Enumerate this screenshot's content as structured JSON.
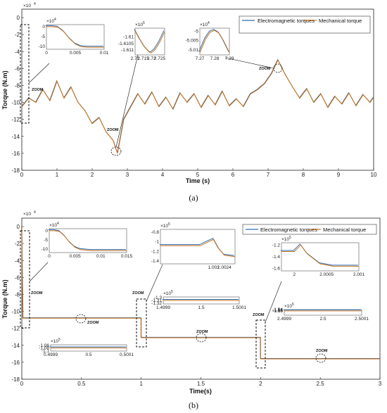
{
  "chart_data": [
    {
      "type": "line",
      "panel_caption": "(a)",
      "xlabel": "Time (s)",
      "ylabel": "Torque (N.m)",
      "y_multiplier": "×10^4",
      "y_multiplier_text": "×10",
      "y_multiplier_exp": "4",
      "xlim": [
        0,
        10
      ],
      "ylim": [
        -18,
        1
      ],
      "xticks": [
        "0",
        "1",
        "2",
        "3",
        "4",
        "5",
        "6",
        "7",
        "8",
        "9",
        "10"
      ],
      "yticks": [
        "0",
        "-2",
        "-4",
        "-6",
        "-8",
        "-10",
        "-12",
        "-14",
        "-16",
        "-18"
      ],
      "legend": [
        "Electromagnetic torques",
        "Mechanical torque"
      ],
      "series_colors": [
        "#2E6EB5",
        "#C4701A"
      ],
      "zoom_label": "ZOOM",
      "series": [
        {
          "name": "Mechanical torque",
          "x": [
            0,
            0.2,
            0.4,
            0.6,
            0.8,
            1.0,
            1.2,
            1.4,
            1.6,
            1.8,
            2.0,
            2.2,
            2.4,
            2.6,
            2.72,
            2.9,
            3.1,
            3.3,
            3.5,
            3.7,
            3.9,
            4.1,
            4.3,
            4.5,
            4.7,
            4.9,
            5.1,
            5.3,
            5.5,
            5.7,
            5.9,
            6.1,
            6.3,
            6.5,
            6.7,
            6.9,
            7.1,
            7.28,
            7.5,
            7.7,
            7.9,
            8.1,
            8.3,
            8.5,
            8.7,
            8.9,
            9.1,
            9.3,
            9.5,
            9.7,
            9.9,
            10
          ],
          "y": [
            -10.5,
            -9.5,
            -10.0,
            -8.5,
            -9.8,
            -7.5,
            -9.5,
            -8.2,
            -10.0,
            -11.0,
            -12.5,
            -11.8,
            -13.5,
            -14.5,
            -16.0,
            -12.0,
            -10.5,
            -9.0,
            -10.2,
            -8.8,
            -10.5,
            -9.4,
            -10.8,
            -8.9,
            -10.0,
            -9.0,
            -10.6,
            -9.2,
            -10.3,
            -8.7,
            -10.4,
            -9.6,
            -10.5,
            -9.0,
            -8.5,
            -7.8,
            -6.6,
            -5.0,
            -6.8,
            -8.2,
            -9.5,
            -8.4,
            -10.0,
            -9.0,
            -10.6,
            -9.3,
            -10.2,
            -8.9,
            -10.4,
            -9.1,
            -10.0,
            -9.4
          ]
        }
      ],
      "insets": [
        {
          "multiplier_exp": "4",
          "xticks": [
            "0",
            "0.005",
            "0.01"
          ],
          "yticks": [
            "0",
            "-5",
            "-10"
          ],
          "x": [
            0,
            0.001,
            0.002,
            0.003,
            0.004,
            0.005,
            0.006,
            0.007,
            0.008,
            0.01
          ],
          "y": [
            0,
            0,
            -0.3,
            -2.5,
            -6.0,
            -8.8,
            -10.1,
            -10.4,
            -10.4,
            -10.4
          ]
        },
        {
          "multiplier_exp": "5",
          "xticks": [
            "2.71",
            "2.715",
            "2.72",
            "2.725"
          ],
          "yticks": [
            "-1.61",
            "-1.6105",
            "-1.611"
          ],
          "x": [
            2.71,
            2.713,
            2.716,
            2.719,
            2.72,
            2.722,
            2.725,
            2.728
          ],
          "y": [
            -1.6095,
            -1.6102,
            -1.6108,
            -1.6112,
            -1.6112,
            -1.611,
            -1.6104,
            -1.6096
          ]
        },
        {
          "multiplier_exp": "4",
          "xticks": [
            "7.27",
            "7.28",
            "7.29"
          ],
          "yticks": [
            "-5",
            "-5.005",
            "-5.01"
          ],
          "x": [
            7.27,
            7.274,
            7.277,
            7.28,
            7.283,
            7.286,
            7.29
          ],
          "y": [
            -5.0115,
            -5.004,
            -5.0005,
            -4.9995,
            -5.001,
            -5.005,
            -5.0115
          ]
        }
      ]
    },
    {
      "type": "line",
      "panel_caption": "(b)",
      "xlabel": "Time(s)",
      "ylabel": "Torque (N.m)",
      "y_multiplier": "×10^4",
      "y_multiplier_text": "×10",
      "y_multiplier_exp": "4",
      "xlim": [
        0,
        3
      ],
      "ylim": [
        -18,
        1
      ],
      "xticks": [
        "0",
        "0.5",
        "1",
        "1.5",
        "2",
        "2.5",
        "3"
      ],
      "yticks": [
        "0",
        "-2",
        "-4",
        "-6",
        "-8",
        "-10",
        "-12",
        "-14",
        "-16",
        "-18"
      ],
      "legend": [
        "Electromagnetic torques",
        "Mechanical torque"
      ],
      "series_colors": [
        "#2E6EB5",
        "#C4701A"
      ],
      "zoom_label": "ZOOM",
      "series": [
        {
          "name": "Mechanical torque",
          "x": [
            0,
            0.01,
            1.0,
            1.0,
            2.0,
            2.0,
            3.0
          ],
          "y": [
            0,
            -10.8,
            -10.8,
            -13.1,
            -13.1,
            -15.6,
            -15.6
          ]
        }
      ],
      "insets": [
        {
          "multiplier_exp": "4",
          "xticks": [
            "0",
            "0.005",
            "0.01",
            "0.015"
          ],
          "yticks": [
            "0",
            "-5",
            "-10"
          ],
          "x": [
            0,
            0.001,
            0.002,
            0.003,
            0.004,
            0.005,
            0.006,
            0.008,
            0.01,
            0.015
          ],
          "y": [
            0,
            0,
            -0.5,
            -3.0,
            -6.5,
            -9.0,
            -10.2,
            -10.8,
            -10.8,
            -10.8
          ]
        },
        {
          "multiplier_exp": "5",
          "xticks": [
            "1.002",
            "1.0024"
          ],
          "yticks": [
            "-0.8",
            "-1",
            "-1.2",
            "-1.4"
          ],
          "x": [
            1.0,
            1.0015,
            1.0018,
            1.002,
            1.0022,
            1.0024,
            1.0028
          ],
          "y": [
            -1.08,
            -1.08,
            -1.0,
            -0.95,
            -1.15,
            -1.28,
            -1.31
          ]
        },
        {
          "multiplier_exp": "5",
          "xticks": [
            "1.4999",
            "1.5",
            "1.5001"
          ],
          "yticks": [
            "-1.3",
            "-1.31",
            "-1.32"
          ],
          "x": [
            1.4999,
            1.5,
            1.5001
          ],
          "y": [
            -1.31,
            -1.31,
            -1.31
          ]
        },
        {
          "multiplier_exp": "5",
          "xticks": [
            "0.4999",
            "0.5",
            "0.5001"
          ],
          "yticks": [
            "-1.06",
            "-1.08",
            "-1.1"
          ],
          "x": [
            0.4999,
            0.5,
            0.5001
          ],
          "y": [
            -1.08,
            -1.08,
            -1.08
          ]
        },
        {
          "multiplier_exp": "5",
          "xticks": [
            "2",
            "2.0005",
            "2.001"
          ],
          "yticks": [
            "-1.2",
            "-1.4",
            "-1.6"
          ],
          "x": [
            1.9998,
            2.0,
            2.0001,
            2.0002,
            2.0004,
            2.0006,
            2.001
          ],
          "y": [
            -1.31,
            -1.31,
            -1.2,
            -1.35,
            -1.52,
            -1.56,
            -1.56
          ]
        },
        {
          "multiplier_exp": "5",
          "xticks": [
            "2.4999",
            "2.5",
            "2.5001"
          ],
          "yticks": [
            "-1.54",
            "-1.55",
            "-1.56"
          ],
          "x": [
            2.4999,
            2.5,
            2.5001
          ],
          "y": [
            -1.56,
            -1.56,
            -1.56
          ]
        }
      ]
    }
  ]
}
